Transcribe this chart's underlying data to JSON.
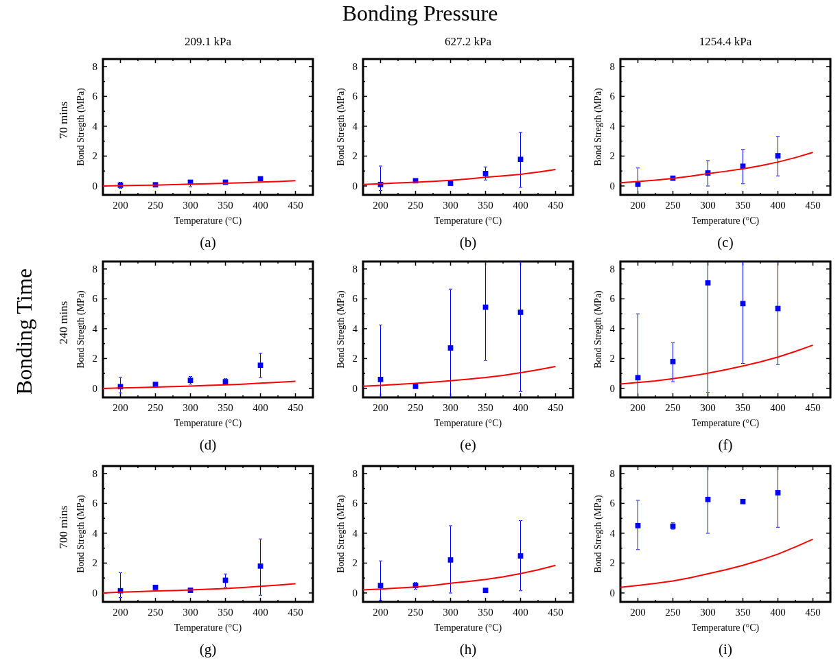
{
  "chart_data": [
    {
      "type": "scatter",
      "title": "209.1 kPa",
      "xlabel": "Temperature (°C)",
      "ylabel": "Bond Stregth (MPa)",
      "annotations": [
        "(a)",
        "70 mins",
        "Bonding Pressure",
        "Bonding Time"
      ],
      "x": [
        200,
        250,
        300,
        350,
        400
      ],
      "xlim": [
        175,
        475
      ],
      "ylim": [
        -0.6,
        8.5
      ],
      "xticks": [
        200,
        {
          "value": 225,
          "label": null
        },
        250,
        {
          "value": 275,
          "label": null
        },
        300,
        {
          "value": 325,
          "label": null
        },
        350,
        {
          "value": 375,
          "label": null
        },
        400,
        {
          "value": 425,
          "label": null
        },
        450
      ],
      "yticks": [
        0,
        {
          "value": 1,
          "label": null
        },
        2,
        {
          "value": 3,
          "label": null
        },
        4,
        {
          "value": 5,
          "label": null
        },
        6,
        {
          "value": 7,
          "label": null
        },
        8
      ],
      "series": [
        {
          "color": "#0000ff",
          "marker": "square",
          "values": [
            0.05,
            0.08,
            0.25,
            0.25,
            0.48
          ],
          "errors": [
            0.2,
            null,
            [
              -0.05,
              0.38
            ],
            null,
            null
          ]
        },
        {
          "type": "line",
          "marker": "none",
          "color": "#ff0000",
          "x": [
            175,
            200,
            225,
            250,
            275,
            300,
            325,
            350,
            375,
            400,
            425,
            450
          ],
          "values": [
            0.0,
            0.02,
            0.04,
            0.06,
            0.09,
            0.12,
            0.15,
            0.18,
            0.22,
            0.26,
            0.3,
            0.35
          ]
        }
      ]
    },
    {
      "type": "scatter",
      "title": "627.2 kPa",
      "xlabel": "Temperature (°C)",
      "ylabel": "Bond Stregth (MPa)",
      "annotations": [
        "(b)"
      ],
      "x": [
        200,
        250,
        300,
        350,
        400
      ],
      "xlim": [
        175,
        475
      ],
      "ylim": [
        -0.6,
        8.5
      ],
      "xticks": [
        200,
        {
          "value": 225,
          "label": null
        },
        250,
        {
          "value": 275,
          "label": null
        },
        300,
        {
          "value": 325,
          "label": null
        },
        350,
        {
          "value": 375,
          "label": null
        },
        400,
        {
          "value": 425,
          "label": null
        },
        450
      ],
      "yticks": [
        0,
        {
          "value": 1,
          "label": null
        },
        2,
        {
          "value": 3,
          "label": null
        },
        4,
        {
          "value": 5,
          "label": null
        },
        6,
        {
          "value": 7,
          "label": null
        },
        8
      ],
      "series": [
        {
          "color": "#0000ff",
          "marker": "square",
          "values": [
            0.1,
            0.35,
            0.18,
            0.83,
            1.78
          ],
          "errors": [
            [
              -0.3,
              1.33
            ],
            null,
            null,
            [
              0.4,
              1.27
            ],
            [
              -0.1,
              3.6
            ]
          ]
        },
        {
          "type": "line",
          "marker": "none",
          "color": "#ff0000",
          "x": [
            175,
            200,
            225,
            250,
            275,
            300,
            325,
            350,
            375,
            400,
            425,
            450
          ],
          "values": [
            0.1,
            0.15,
            0.2,
            0.25,
            0.31,
            0.38,
            0.47,
            0.58,
            0.67,
            0.78,
            0.93,
            1.1
          ]
        }
      ]
    },
    {
      "type": "scatter",
      "title": "1254.4 kPa",
      "xlabel": "Temperature (°C)",
      "ylabel": "Bond Stregth (MPa)",
      "annotations": [
        "(c)"
      ],
      "x": [
        200,
        250,
        300,
        350,
        400
      ],
      "xlim": [
        175,
        475
      ],
      "ylim": [
        -0.6,
        8.5
      ],
      "xticks": [
        200,
        {
          "value": 225,
          "label": null
        },
        250,
        {
          "value": 275,
          "label": null
        },
        300,
        {
          "value": 325,
          "label": null
        },
        350,
        {
          "value": 375,
          "label": null
        },
        400,
        {
          "value": 425,
          "label": null
        },
        450
      ],
      "yticks": [
        0,
        {
          "value": 1,
          "label": null
        },
        2,
        {
          "value": 3,
          "label": null
        },
        4,
        {
          "value": 5,
          "label": null
        },
        6,
        {
          "value": 7,
          "label": null
        },
        8
      ],
      "series": [
        {
          "color": "#0000ff",
          "marker": "square",
          "values": [
            0.12,
            0.52,
            0.87,
            1.32,
            2.02
          ],
          "errors": [
            [
              -0.6,
              1.2
            ],
            null,
            [
              0.0,
              1.7
            ],
            [
              0.15,
              2.45
            ],
            [
              0.68,
              3.32
            ]
          ]
        },
        {
          "type": "line",
          "marker": "none",
          "color": "#ff0000",
          "x": [
            175,
            200,
            225,
            250,
            275,
            300,
            325,
            350,
            375,
            400,
            425,
            450
          ],
          "values": [
            0.22,
            0.3,
            0.39,
            0.5,
            0.65,
            0.83,
            0.98,
            1.15,
            1.35,
            1.6,
            1.9,
            2.25
          ]
        }
      ]
    },
    {
      "type": "scatter",
      "xlabel": "Temperature (°C)",
      "ylabel": "Bond Stregth (MPa)",
      "annotations": [
        "(d)",
        "240 mins"
      ],
      "x": [
        200,
        250,
        300,
        350,
        400
      ],
      "xlim": [
        175,
        475
      ],
      "ylim": [
        -0.6,
        8.5
      ],
      "xticks": [
        200,
        {
          "value": 225,
          "label": null
        },
        250,
        {
          "value": 275,
          "label": null
        },
        300,
        {
          "value": 325,
          "label": null
        },
        350,
        {
          "value": 375,
          "label": null
        },
        400,
        {
          "value": 425,
          "label": null
        },
        450
      ],
      "yticks": [
        0,
        {
          "value": 1,
          "label": null
        },
        2,
        {
          "value": 3,
          "label": null
        },
        4,
        {
          "value": 5,
          "label": null
        },
        6,
        {
          "value": 7,
          "label": null
        },
        8
      ],
      "series": [
        {
          "color": "#0000ff",
          "marker": "square",
          "values": [
            0.12,
            0.27,
            0.54,
            0.45,
            1.55
          ],
          "errors": [
            [
              -0.3,
              0.75
            ],
            null,
            [
              0.28,
              0.8
            ],
            [
              0.3,
              0.65
            ],
            [
              0.72,
              2.37
            ]
          ]
        },
        {
          "type": "line",
          "marker": "none",
          "color": "#ff0000",
          "x": [
            175,
            200,
            225,
            250,
            275,
            300,
            325,
            350,
            375,
            400,
            425,
            450
          ],
          "values": [
            0.0,
            0.03,
            0.06,
            0.09,
            0.12,
            0.16,
            0.2,
            0.24,
            0.29,
            0.35,
            0.41,
            0.48
          ]
        }
      ]
    },
    {
      "type": "scatter",
      "xlabel": "Temperature (°C)",
      "ylabel": "Bond Stregth (MPa)",
      "annotations": [
        "(e)"
      ],
      "x": [
        200,
        250,
        300,
        350,
        400
      ],
      "xlim": [
        175,
        475
      ],
      "ylim": [
        -0.6,
        8.5
      ],
      "xticks": [
        200,
        {
          "value": 225,
          "label": null
        },
        250,
        {
          "value": 275,
          "label": null
        },
        300,
        {
          "value": 325,
          "label": null
        },
        350,
        {
          "value": 375,
          "label": null
        },
        400,
        {
          "value": 425,
          "label": null
        },
        450
      ],
      "yticks": [
        0,
        {
          "value": 1,
          "label": null
        },
        2,
        {
          "value": 3,
          "label": null
        },
        4,
        {
          "value": 5,
          "label": null
        },
        6,
        {
          "value": 7,
          "label": null
        },
        8
      ],
      "series": [
        {
          "color": "#0000ff",
          "marker": "square",
          "values": [
            0.6,
            0.14,
            2.71,
            5.44,
            5.1
          ],
          "errors": [
            [
              -0.6,
              4.25
            ],
            null,
            [
              -0.6,
              6.65
            ],
            [
              1.87,
              8.5
            ],
            [
              -0.2,
              8.5
            ]
          ]
        },
        {
          "type": "line",
          "marker": "none",
          "color": "#ff0000",
          "x": [
            175,
            200,
            225,
            250,
            275,
            300,
            325,
            350,
            375,
            400,
            425,
            450
          ],
          "values": [
            0.15,
            0.2,
            0.27,
            0.34,
            0.42,
            0.52,
            0.62,
            0.73,
            0.87,
            1.05,
            1.25,
            1.47
          ]
        }
      ]
    },
    {
      "type": "scatter",
      "xlabel": "Temperature (°C)",
      "ylabel": "Bond Stregth (MPa)",
      "annotations": [
        "(f)"
      ],
      "x": [
        200,
        250,
        300,
        350,
        400
      ],
      "xlim": [
        175,
        475
      ],
      "ylim": [
        -0.6,
        8.5
      ],
      "xticks": [
        200,
        {
          "value": 225,
          "label": null
        },
        250,
        {
          "value": 275,
          "label": null
        },
        300,
        {
          "value": 325,
          "label": null
        },
        350,
        {
          "value": 375,
          "label": null
        },
        400,
        {
          "value": 425,
          "label": null
        },
        450
      ],
      "yticks": [
        0,
        {
          "value": 1,
          "label": null
        },
        2,
        {
          "value": 3,
          "label": null
        },
        4,
        {
          "value": 5,
          "label": null
        },
        6,
        {
          "value": 7,
          "label": null
        },
        8
      ],
      "series": [
        {
          "color": "#0000ff",
          "marker": "square",
          "values": [
            0.72,
            1.8,
            7.07,
            5.68,
            5.35
          ],
          "errors": [
            [
              -0.6,
              5.0
            ],
            [
              0.45,
              3.05
            ],
            [
              -0.25,
              8.5
            ],
            [
              1.67,
              8.5
            ],
            [
              1.6,
              8.5
            ]
          ]
        },
        {
          "type": "line",
          "marker": "none",
          "color": "#ff0000",
          "x": [
            175,
            200,
            225,
            250,
            275,
            300,
            325,
            350,
            375,
            400,
            425,
            450
          ],
          "values": [
            0.3,
            0.4,
            0.5,
            0.65,
            0.82,
            1.02,
            1.25,
            1.5,
            1.78,
            2.1,
            2.48,
            2.9
          ]
        }
      ]
    },
    {
      "type": "scatter",
      "xlabel": "Temperature (°C)",
      "ylabel": "Bond Stregth (MPa)",
      "annotations": [
        "(g)",
        "700 mins"
      ],
      "x": [
        200,
        250,
        300,
        350,
        400
      ],
      "xlim": [
        175,
        475
      ],
      "ylim": [
        -0.6,
        8.5
      ],
      "xticks": [
        200,
        {
          "value": 225,
          "label": null
        },
        250,
        {
          "value": 275,
          "label": null
        },
        300,
        {
          "value": 325,
          "label": null
        },
        350,
        {
          "value": 375,
          "label": null
        },
        400,
        {
          "value": 425,
          "label": null
        },
        450
      ],
      "yticks": [
        0,
        {
          "value": 1,
          "label": null
        },
        2,
        {
          "value": 3,
          "label": null
        },
        4,
        {
          "value": 5,
          "label": null
        },
        6,
        {
          "value": 7,
          "label": null
        },
        8
      ],
      "series": [
        {
          "color": "#0000ff",
          "marker": "square",
          "values": [
            0.15,
            0.37,
            0.18,
            0.85,
            1.8
          ],
          "errors": [
            [
              -0.3,
              1.35
            ],
            null,
            null,
            [
              0.38,
              1.27
            ],
            [
              -0.15,
              3.62
            ]
          ]
        },
        {
          "type": "line",
          "marker": "none",
          "color": "#ff0000",
          "x": [
            175,
            200,
            225,
            250,
            275,
            300,
            325,
            350,
            375,
            400,
            425,
            450
          ],
          "values": [
            0.0,
            0.05,
            0.09,
            0.13,
            0.16,
            0.2,
            0.25,
            0.3,
            0.37,
            0.45,
            0.53,
            0.62
          ]
        }
      ]
    },
    {
      "type": "scatter",
      "xlabel": "Temperature (°C)",
      "ylabel": "Bond Stregth (MPa)",
      "annotations": [
        "(h)"
      ],
      "x": [
        200,
        250,
        300,
        350,
        400
      ],
      "xlim": [
        175,
        475
      ],
      "ylim": [
        -0.6,
        8.5
      ],
      "xticks": [
        200,
        {
          "value": 225,
          "label": null
        },
        250,
        {
          "value": 275,
          "label": null
        },
        300,
        {
          "value": 325,
          "label": null
        },
        350,
        {
          "value": 375,
          "label": null
        },
        400,
        {
          "value": 425,
          "label": null
        },
        450
      ],
      "yticks": [
        0,
        {
          "value": 1,
          "label": null
        },
        2,
        {
          "value": 3,
          "label": null
        },
        4,
        {
          "value": 5,
          "label": null
        },
        6,
        {
          "value": 7,
          "label": null
        },
        8
      ],
      "series": [
        {
          "color": "#0000ff",
          "marker": "square",
          "values": [
            0.5,
            0.5,
            2.21,
            0.17,
            2.48
          ],
          "errors": [
            [
              -0.5,
              2.15
            ],
            [
              0.25,
              0.7
            ],
            [
              0.0,
              4.5
            ],
            null,
            [
              0.15,
              4.85
            ]
          ]
        },
        {
          "type": "line",
          "marker": "none",
          "color": "#ff0000",
          "x": [
            175,
            200,
            225,
            250,
            275,
            300,
            325,
            350,
            375,
            400,
            425,
            450
          ],
          "values": [
            0.2,
            0.26,
            0.33,
            0.4,
            0.5,
            0.65,
            0.77,
            0.9,
            1.08,
            1.3,
            1.55,
            1.85
          ]
        }
      ]
    },
    {
      "type": "scatter",
      "xlabel": "Temperature (°C)",
      "ylabel": "Bond Stregth (MPa)",
      "annotations": [
        "(i)"
      ],
      "x": [
        200,
        250,
        300,
        350,
        400
      ],
      "xlim": [
        175,
        475
      ],
      "ylim": [
        -0.6,
        8.5
      ],
      "xticks": [
        200,
        {
          "value": 225,
          "label": null
        },
        250,
        {
          "value": 275,
          "label": null
        },
        300,
        {
          "value": 325,
          "label": null
        },
        350,
        {
          "value": 375,
          "label": null
        },
        400,
        {
          "value": 425,
          "label": null
        },
        450
      ],
      "yticks": [
        0,
        {
          "value": 1,
          "label": null
        },
        2,
        {
          "value": 3,
          "label": null
        },
        4,
        {
          "value": 5,
          "label": null
        },
        6,
        {
          "value": 7,
          "label": null
        },
        8
      ],
      "series": [
        {
          "color": "#0000ff",
          "marker": "square",
          "values": [
            4.51,
            4.47,
            6.26,
            6.12,
            6.71
          ],
          "errors": [
            [
              2.9,
              6.2
            ],
            [
              4.27,
              4.7
            ],
            [
              4.0,
              8.5
            ],
            null,
            [
              4.4,
              8.5
            ]
          ]
        },
        {
          "type": "line",
          "marker": "none",
          "color": "#ff0000",
          "x": [
            175,
            200,
            225,
            250,
            275,
            300,
            325,
            350,
            375,
            400,
            425,
            450
          ],
          "values": [
            0.38,
            0.5,
            0.64,
            0.8,
            1.02,
            1.28,
            1.55,
            1.85,
            2.2,
            2.6,
            3.08,
            3.6
          ]
        }
      ]
    }
  ]
}
